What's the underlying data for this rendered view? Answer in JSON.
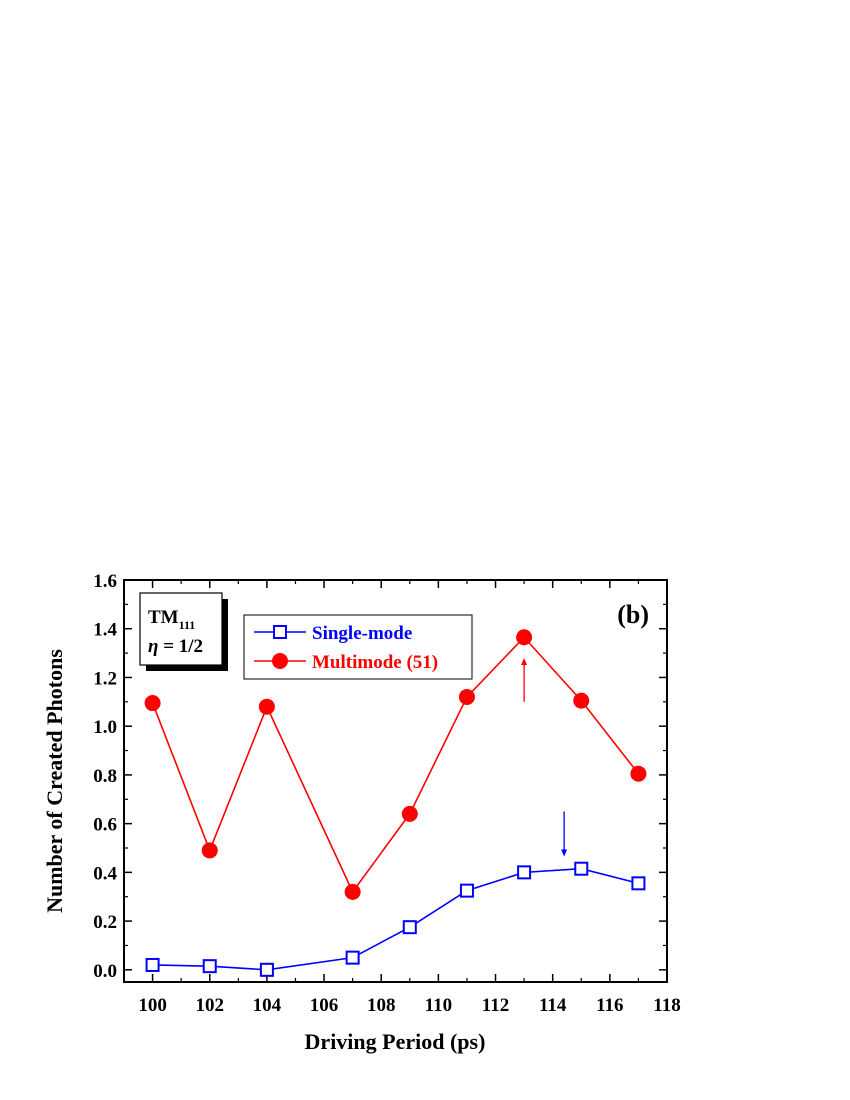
{
  "chart_data": {
    "type": "line",
    "panel_label": "(b)",
    "xlabel": "Driving Period (ps)",
    "ylabel": "Number of Created Photons",
    "xlim": [
      99,
      118
    ],
    "ylim": [
      -0.05,
      1.6
    ],
    "xticks": [
      100,
      102,
      104,
      106,
      108,
      110,
      112,
      114,
      116,
      118
    ],
    "yticks": [
      0.0,
      0.2,
      0.4,
      0.6,
      0.8,
      1.0,
      1.2,
      1.4,
      1.6
    ],
    "ytick_labels": [
      "0.0",
      "0.2",
      "0.4",
      "0.6",
      "0.8",
      "1.0",
      "1.2",
      "1.4",
      "1.6"
    ],
    "grid": false,
    "mode_box": {
      "line1_main": "TM",
      "line1_sub": "111",
      "line2_symbol": "η",
      "line2_value": " = 1/2"
    },
    "legend_position": "top-center",
    "series": [
      {
        "name": "Single-mode",
        "color": "#0000ff",
        "marker": "open-square",
        "x": [
          100,
          102,
          104,
          107,
          109,
          111,
          113,
          115,
          117
        ],
        "y": [
          0.02,
          0.015,
          0.0,
          0.05,
          0.175,
          0.325,
          0.4,
          0.415,
          0.355
        ]
      },
      {
        "name": "Multimode (51)",
        "color": "#ff0000",
        "marker": "filled-circle",
        "x": [
          100,
          102,
          104,
          107,
          109,
          111,
          113,
          115,
          117
        ],
        "y": [
          1.095,
          0.49,
          1.08,
          0.32,
          0.64,
          1.12,
          1.365,
          1.105,
          0.805
        ]
      }
    ],
    "annotations": [
      {
        "type": "arrow",
        "direction": "up",
        "color": "#ff0000",
        "x": 113,
        "y_from": 1.1,
        "y_to": 1.28
      },
      {
        "type": "arrow",
        "direction": "down",
        "color": "#0000ff",
        "x": 114.4,
        "y_from": 0.65,
        "y_to": 0.465
      }
    ]
  }
}
